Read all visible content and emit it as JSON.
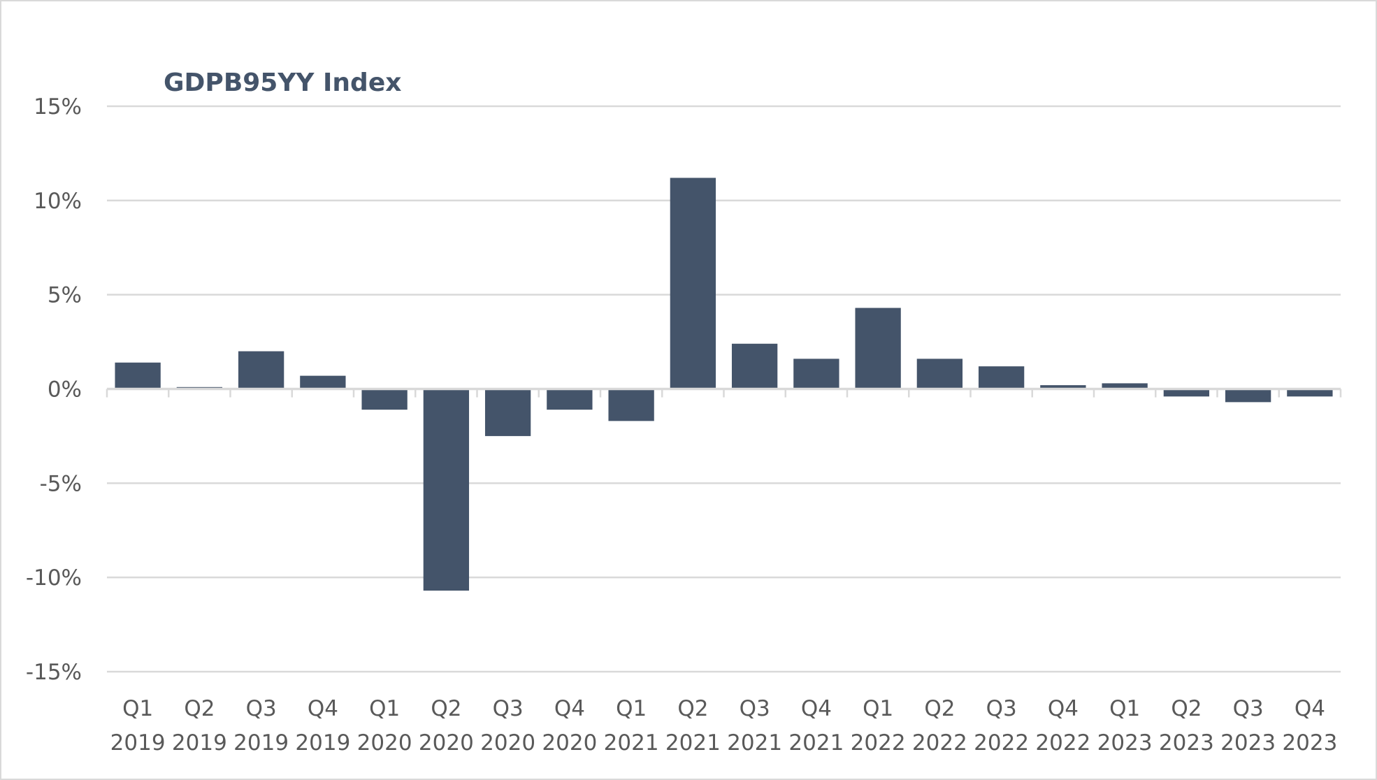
{
  "chart_data": {
    "type": "bar",
    "title": "GDPB95YY Index",
    "xlabel": "",
    "ylabel": "",
    "ylim": [
      -15,
      15
    ],
    "yticks": [
      15,
      10,
      5,
      0,
      -5,
      -10,
      -15
    ],
    "ytick_labels": [
      "15%",
      "10%",
      "5%",
      "0%",
      "-5%",
      "-10%",
      "-15%"
    ],
    "grid": true,
    "legend": "none",
    "bar_color": "#44546a",
    "categories": [
      [
        "Q1",
        "2019"
      ],
      [
        "Q2",
        "2019"
      ],
      [
        "Q3",
        "2019"
      ],
      [
        "Q4",
        "2019"
      ],
      [
        "Q1",
        "2020"
      ],
      [
        "Q2",
        "2020"
      ],
      [
        "Q3",
        "2020"
      ],
      [
        "Q4",
        "2020"
      ],
      [
        "Q1",
        "2021"
      ],
      [
        "Q2",
        "2021"
      ],
      [
        "Q3",
        "2021"
      ],
      [
        "Q4",
        "2021"
      ],
      [
        "Q1",
        "2022"
      ],
      [
        "Q2",
        "2022"
      ],
      [
        "Q3",
        "2022"
      ],
      [
        "Q4",
        "2022"
      ],
      [
        "Q1",
        "2023"
      ],
      [
        "Q2",
        "2023"
      ],
      [
        "Q3",
        "2023"
      ],
      [
        "Q4",
        "2023"
      ]
    ],
    "values": [
      1.4,
      0.1,
      2.0,
      0.7,
      -1.1,
      -10.7,
      -2.5,
      -1.1,
      -1.7,
      11.2,
      2.4,
      1.6,
      4.3,
      1.6,
      1.2,
      0.2,
      0.3,
      -0.4,
      -0.7,
      -0.4
    ]
  }
}
